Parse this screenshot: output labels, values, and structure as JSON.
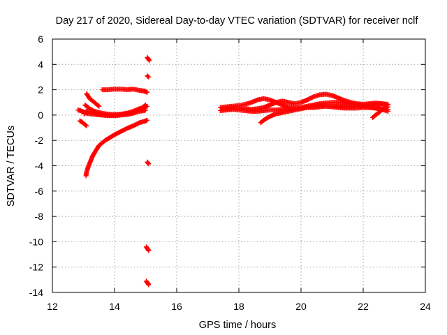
{
  "chart_data": {
    "type": "scatter",
    "title": "Day 217 of 2020, Sidereal Day-to-day VTEC variation (SDTVAR) for receiver nclf",
    "xlabel": "GPS time / hours",
    "ylabel": "SDTVAR / TECUs",
    "xlim": [
      12,
      24
    ],
    "ylim": [
      -14,
      6
    ],
    "xticks": [
      "12",
      "14",
      "16",
      "18",
      "20",
      "22",
      "24"
    ],
    "yticks": [
      "6",
      "4",
      "2",
      "0",
      "-2",
      "-4",
      "-6",
      "-8",
      "-10",
      "-12",
      "-14"
    ],
    "grid": true,
    "legend": "none",
    "marker": "plus",
    "color": "#ff0000",
    "series": [
      {
        "segments": [
          {
            "x": [
              13.02,
              13.1,
              13.2,
              13.3,
              13.45,
              13.6,
              13.8,
              14.0,
              14.2,
              14.4,
              14.6,
              14.8,
              14.95,
              15.0
            ],
            "y": [
              0.1,
              0.3,
              0.3,
              0.2,
              0.1,
              0.05,
              0.0,
              -0.05,
              0.0,
              0.05,
              0.15,
              0.3,
              0.35,
              0.4
            ]
          },
          {
            "x": [
              12.82,
              12.9,
              13.0,
              13.1,
              13.2,
              13.4,
              13.6,
              13.8,
              14.0,
              14.2,
              14.4,
              14.6,
              14.8,
              14.95,
              15.05
            ],
            "y": [
              0.4,
              0.35,
              0.25,
              0.15,
              0.1,
              0.05,
              0.0,
              -0.05,
              0.0,
              0.05,
              0.15,
              0.3,
              0.5,
              0.6,
              0.7
            ]
          },
          {
            "x": [
              13.05,
              13.2,
              13.35,
              13.5,
              13.7,
              13.9,
              14.1,
              14.3,
              14.5,
              14.7,
              14.85,
              15.0
            ],
            "y": [
              0.8,
              0.5,
              0.3,
              0.2,
              0.1,
              0.05,
              0.05,
              0.1,
              0.15,
              0.3,
              0.5,
              0.8
            ]
          },
          {
            "x": [
              12.88,
              12.95,
              13.0,
              13.05,
              13.1
            ],
            "y": [
              -0.45,
              -0.55,
              -0.65,
              -0.75,
              -0.85
            ]
          },
          {
            "x": [
              13.1,
              13.15,
              13.2,
              13.25,
              13.3,
              13.4,
              13.5
            ],
            "y": [
              1.7,
              1.5,
              1.3,
              1.2,
              1.1,
              0.9,
              0.7
            ]
          },
          {
            "x": [
              13.6,
              13.8,
              14.0,
              14.2,
              14.4,
              14.6,
              14.8,
              14.95,
              15.05
            ],
            "y": [
              2.0,
              2.0,
              2.05,
              2.05,
              2.0,
              2.05,
              1.95,
              1.9,
              1.8
            ]
          },
          {
            "x": [
              13.08,
              13.1,
              13.15,
              13.2,
              13.25,
              13.3,
              13.35,
              13.4,
              13.45,
              13.5,
              13.6,
              13.7,
              13.8,
              13.9,
              14.0,
              14.2,
              14.4,
              14.6,
              14.8,
              14.95,
              15.05
            ],
            "y": [
              -4.8,
              -4.5,
              -4.1,
              -3.8,
              -3.5,
              -3.2,
              -3.0,
              -2.8,
              -2.6,
              -2.4,
              -2.2,
              -2.0,
              -1.85,
              -1.7,
              -1.55,
              -1.3,
              -1.05,
              -0.85,
              -0.6,
              -0.5,
              -0.4
            ]
          },
          {
            "x": [
              15.05,
              15.08,
              15.12
            ],
            "y": [
              4.55,
              4.45,
              4.3
            ]
          },
          {
            "x": [
              15.05,
              15.1
            ],
            "y": [
              3.1,
              3.0
            ]
          },
          {
            "x": [
              15.05,
              15.1
            ],
            "y": [
              -3.7,
              -3.85
            ]
          },
          {
            "x": [
              15.02,
              15.06,
              15.1
            ],
            "y": [
              -10.4,
              -10.55,
              -10.7
            ]
          },
          {
            "x": [
              15.02,
              15.06,
              15.1
            ],
            "y": [
              -13.1,
              -13.25,
              -13.4
            ]
          },
          {
            "x": [
              17.4,
              17.6,
              17.8,
              18.0,
              18.2,
              18.4,
              18.6,
              18.8,
              19.0,
              19.2,
              19.4,
              19.6,
              19.8,
              20.0,
              20.2,
              20.4,
              20.6,
              20.8,
              21.0,
              21.2,
              21.4,
              21.6,
              21.8,
              22.0,
              22.2,
              22.4,
              22.6,
              22.8
            ],
            "y": [
              0.35,
              0.4,
              0.45,
              0.4,
              0.35,
              0.3,
              0.3,
              0.35,
              0.4,
              0.4,
              0.45,
              0.45,
              0.5,
              0.55,
              0.6,
              0.6,
              0.65,
              0.7,
              0.7,
              0.7,
              0.7,
              0.7,
              0.7,
              0.65,
              0.6,
              0.55,
              0.5,
              0.45
            ]
          },
          {
            "x": [
              17.4,
              17.6,
              17.8,
              18.0,
              18.2,
              18.4,
              18.6,
              18.8,
              19.0,
              19.2,
              19.4,
              19.6,
              19.8,
              20.0,
              20.2,
              20.4,
              20.6,
              20.8,
              21.0,
              21.2,
              21.4,
              21.6,
              21.8,
              22.0,
              22.2,
              22.4,
              22.6,
              22.8
            ],
            "y": [
              0.6,
              0.65,
              0.7,
              0.75,
              0.85,
              1.0,
              1.2,
              1.3,
              1.2,
              1.0,
              0.8,
              0.6,
              0.55,
              0.6,
              0.7,
              0.8,
              0.9,
              0.95,
              1.0,
              1.0,
              0.95,
              0.9,
              0.85,
              0.8,
              0.8,
              0.85,
              0.9,
              0.85
            ]
          },
          {
            "x": [
              17.6,
              17.8,
              18.0,
              18.2,
              18.4,
              18.6,
              18.8,
              19.0,
              19.2,
              19.4,
              19.6,
              19.8,
              20.0,
              20.2,
              20.4,
              20.6,
              20.8,
              21.0,
              21.2,
              21.4,
              21.6,
              21.8,
              22.0,
              22.2,
              22.4,
              22.6,
              22.8
            ],
            "y": [
              0.5,
              0.55,
              0.55,
              0.5,
              0.45,
              0.5,
              0.6,
              0.8,
              1.0,
              1.1,
              1.0,
              0.9,
              1.0,
              1.2,
              1.45,
              1.6,
              1.65,
              1.55,
              1.35,
              1.15,
              1.0,
              0.9,
              0.85,
              0.9,
              0.95,
              0.9,
              0.8
            ]
          },
          {
            "x": [
              18.7,
              18.8,
              19.0,
              19.2,
              19.4,
              19.6,
              19.8,
              20.0,
              20.2,
              20.4,
              20.6,
              20.8,
              21.0,
              21.2,
              21.4,
              21.6,
              21.8,
              22.0,
              22.2,
              22.4,
              22.6,
              22.8
            ],
            "y": [
              -0.6,
              -0.4,
              -0.1,
              0.1,
              0.2,
              0.3,
              0.4,
              0.5,
              0.6,
              0.7,
              0.75,
              0.7,
              0.65,
              0.6,
              0.55,
              0.55,
              0.55,
              0.6,
              0.6,
              0.55,
              0.45,
              0.3
            ]
          },
          {
            "x": [
              22.3,
              22.4,
              22.5,
              22.6,
              22.7,
              22.8
            ],
            "y": [
              -0.2,
              0.0,
              0.2,
              0.4,
              0.55,
              0.65
            ]
          }
        ]
      }
    ]
  }
}
